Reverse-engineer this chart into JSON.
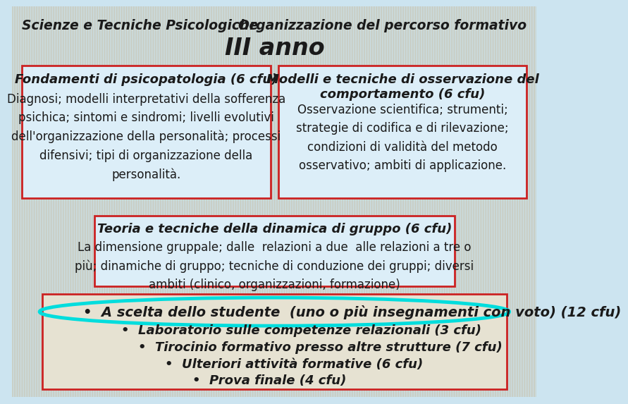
{
  "title_left": "Scienze e Tecniche Psicologiche",
  "title_right": "Organizzazione del percorso formativo",
  "year_title": "III anno",
  "box1_title": "Fondamenti di psicopatologia (6 cfu)",
  "box1_body": "Diagnosi; modelli interpretativi della sofferenza\npsichica; sintomi e sindromi; livelli evolutivi\ndell'organizzazione della personalità; processi\ndifensivi; tipi di organizzazione della\npersonalità.",
  "box2_title": "Modelli e tecniche di osservazione del\ncomportamento (6 cfu)",
  "box2_body": "Osservazione scientifica; strumenti;\nstrategie di codifica e di rilevazione;\ncondizioni di validità del metodo\nosservativo; ambiti di applicazione.",
  "box3_title": "Teoria e tecniche della dinamica di gruppo (6 cfu)",
  "box3_body": "La dimensione gruppale; dalle  relazioni a due  alle relazioni a tre o\npiù; dinamiche di gruppo; tecniche di conduzione dei gruppi; diversi\nambiti (clinico, organizzazioni, formazione)",
  "box4_line1": "•  A scelta dello studente  (uno o più insegnamenti con voto) (12 cfu)",
  "box4_line2": "•  Laboratorio sulle competenze relazionali (3 cfu)",
  "box4_line3": "•  Tirocinio formativo presso altre strutture (7 cfu)",
  "box4_line4": "•  Ulteriori attività formative (6 cfu)",
  "box4_line5": "•  Prova finale (4 cfu)",
  "font_color": "#1a1a1a",
  "box_border_color": "#cc2222",
  "box_fill": "#dceef8",
  "box_fill_bottom": "#e6e2d2",
  "ellipse_color": "#00dddd",
  "bg_top": "#cce4f0",
  "bg_bottom": "#c8c4b0"
}
